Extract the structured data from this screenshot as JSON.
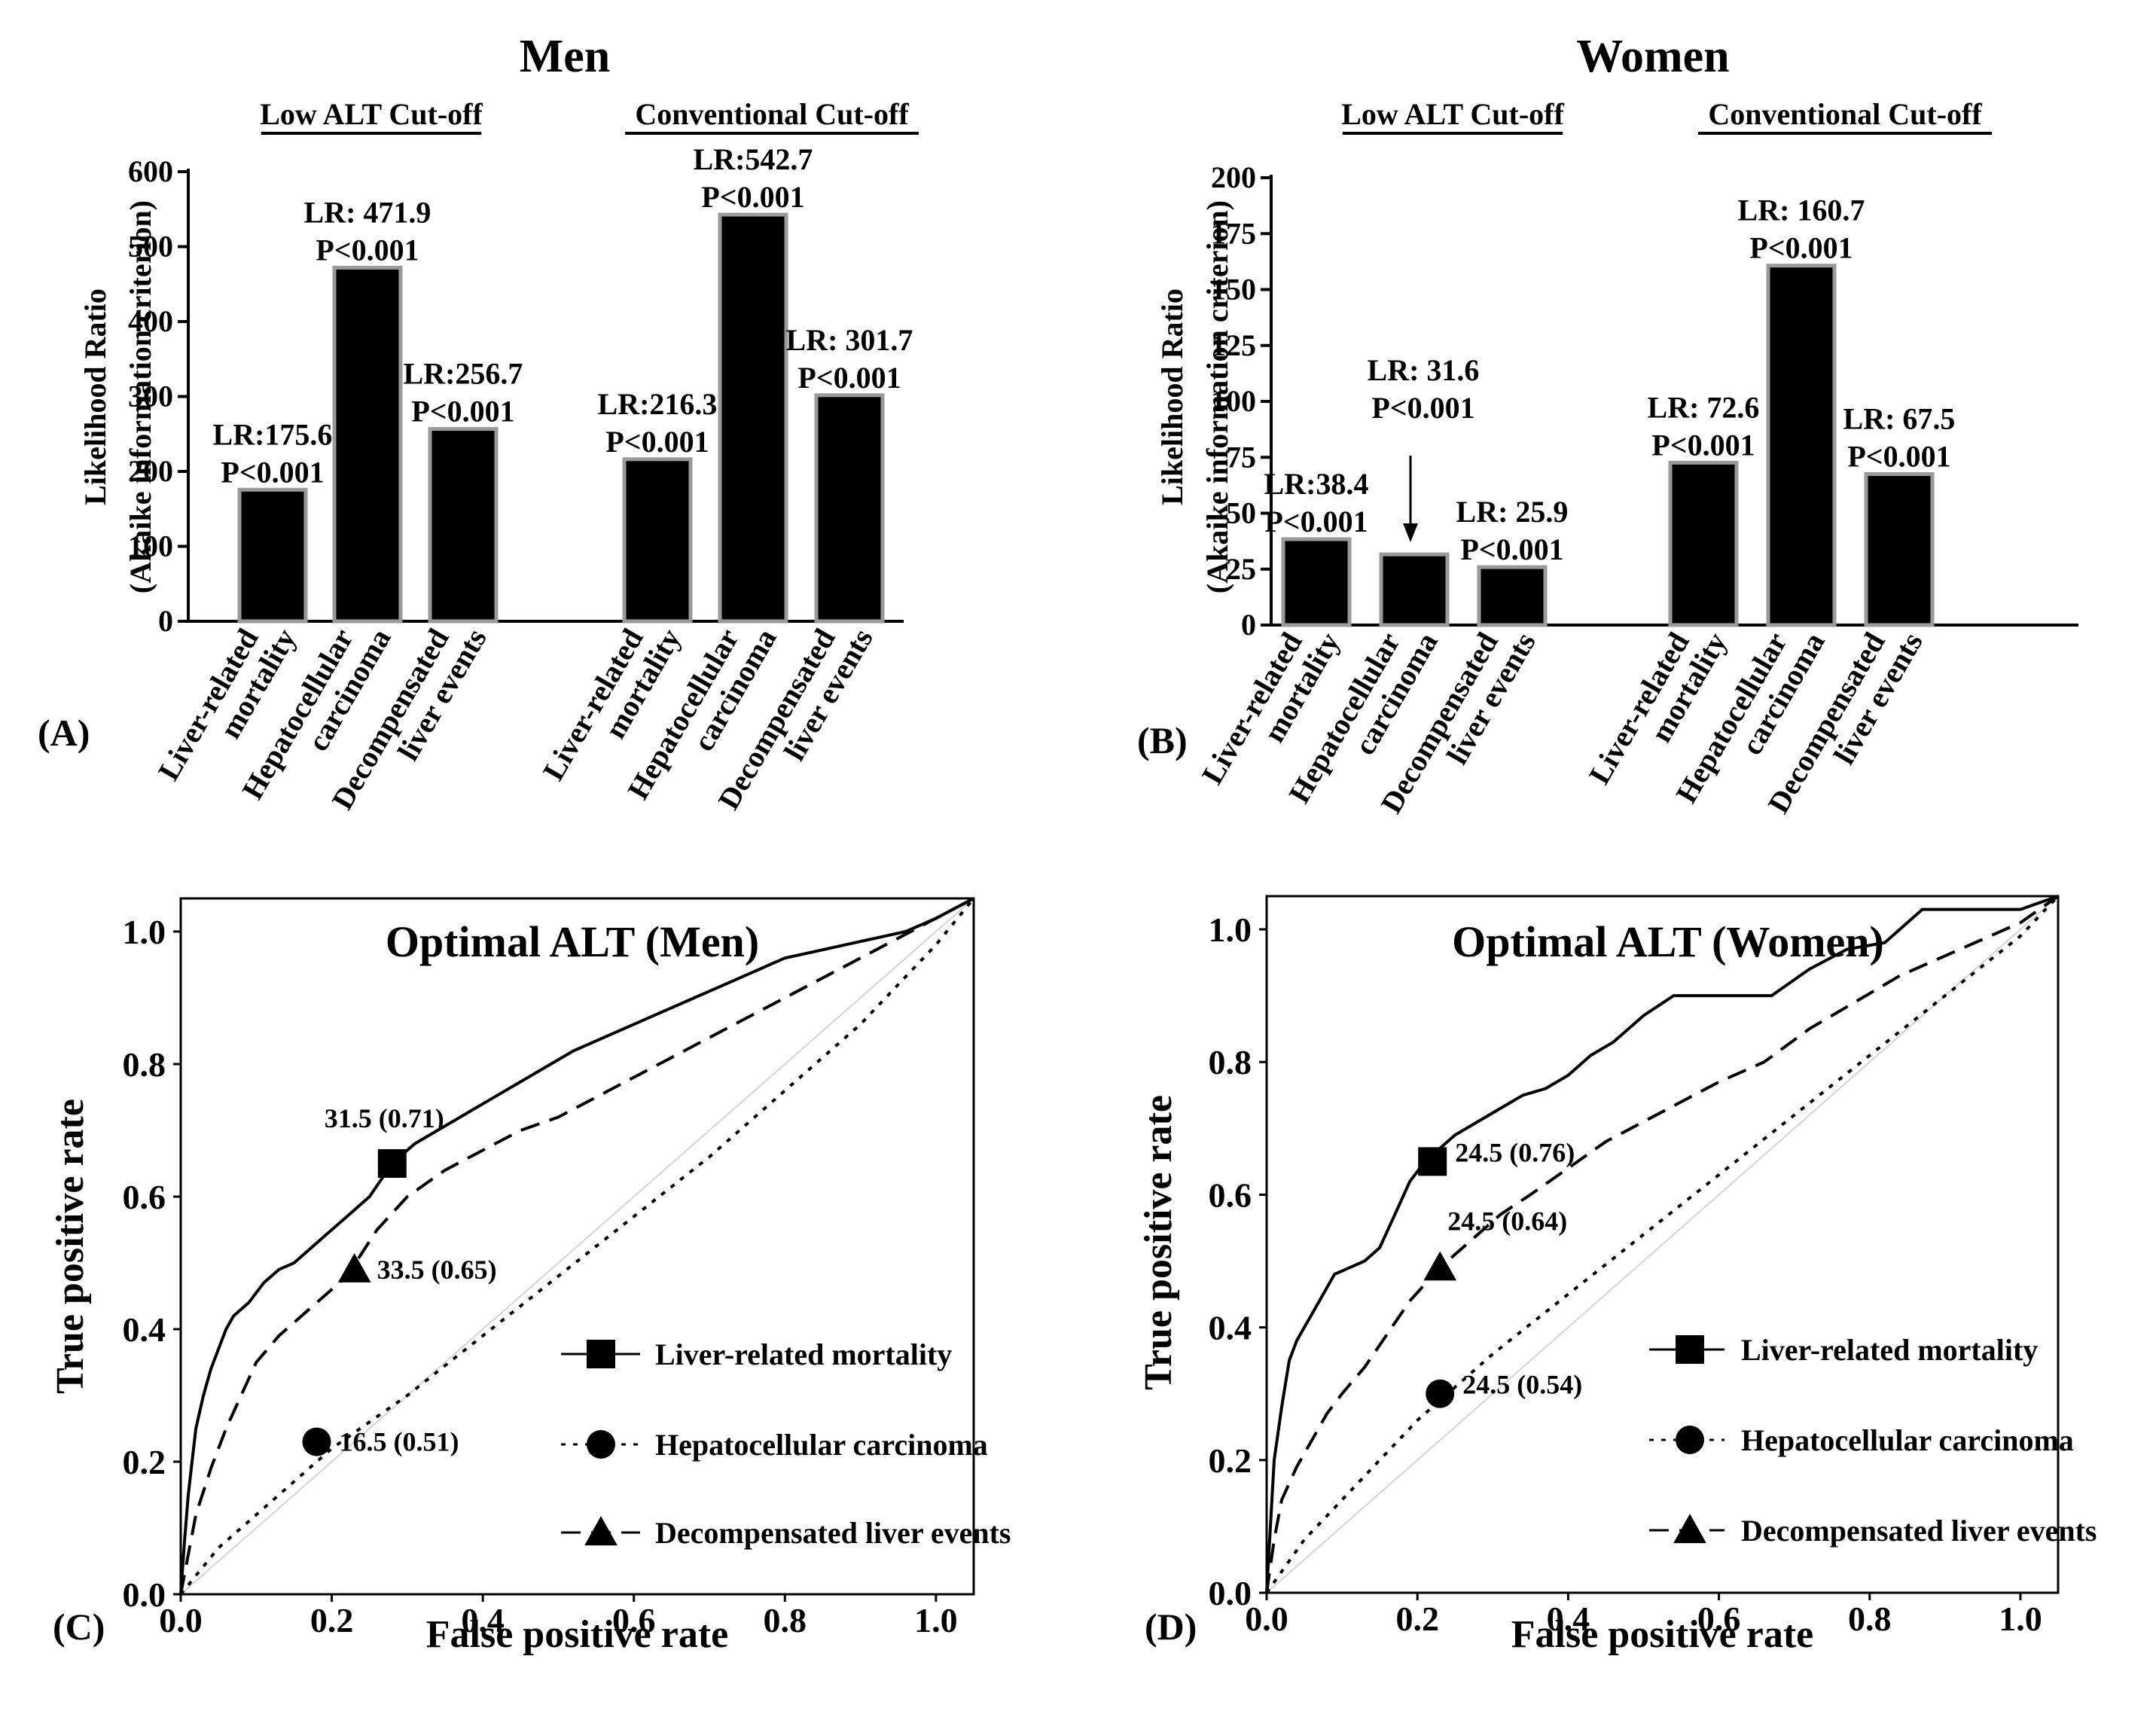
{
  "chart_data": [
    {
      "panel": "(A)",
      "type": "bar",
      "title": "Men",
      "ylabel": [
        "Likelihood Ratio",
        "(Akaike information  criterion)"
      ],
      "ylim": [
        0,
        600
      ],
      "yticks": [
        "0",
        "100",
        "200",
        "300",
        "400",
        "500",
        "600"
      ],
      "groups": [
        {
          "name": "Low ALT Cut-off",
          "bars": [
            {
              "category": [
                "Liver-related",
                "mortality"
              ],
              "value": 175.6,
              "label": [
                "LR:175.6",
                "P<0.001"
              ]
            },
            {
              "category": [
                "Hepatocellular",
                "carcinoma"
              ],
              "value": 471.9,
              "label": [
                "LR: 471.9",
                "P<0.001"
              ]
            },
            {
              "category": [
                "Decompensated",
                "liver events"
              ],
              "value": 256.7,
              "label": [
                "LR:256.7",
                "P<0.001"
              ]
            }
          ]
        },
        {
          "name": "Conventional Cut-off",
          "bars": [
            {
              "category": [
                "Liver-related",
                "mortality"
              ],
              "value": 216.3,
              "label": [
                "LR:216.3",
                "P<0.001"
              ]
            },
            {
              "category": [
                "Hepatocellular",
                "carcinoma"
              ],
              "value": 542.7,
              "label": [
                "LR:542.7",
                "P<0.001"
              ]
            },
            {
              "category": [
                "Decompensated",
                "liver events"
              ],
              "value": 301.7,
              "label": [
                "LR: 301.7",
                "P<0.001"
              ]
            }
          ]
        }
      ]
    },
    {
      "panel": "(B)",
      "type": "bar",
      "title": "Women",
      "ylabel": [
        "Likelihood Ratio",
        "(Akaike information  criterion)"
      ],
      "ylim": [
        0,
        200
      ],
      "yticks": [
        "0",
        "25",
        "50",
        "75",
        "100",
        "125",
        "150",
        "175",
        "200"
      ],
      "groups": [
        {
          "name": "Low ALT Cut-off",
          "bars": [
            {
              "category": [
                "Liver-related",
                "mortality"
              ],
              "value": 38.4,
              "label": [
                "LR:38.4",
                "P<0.001"
              ]
            },
            {
              "category": [
                "Hepatocellular",
                "carcinoma"
              ],
              "value": 31.6,
              "label": [
                "LR: 31.6",
                "P<0.001"
              ]
            },
            {
              "category": [
                "Decompensated",
                "liver events"
              ],
              "value": 25.9,
              "label": [
                "LR: 25.9",
                "P<0.001"
              ]
            }
          ]
        },
        {
          "name": "Conventional Cut-off",
          "bars": [
            {
              "category": [
                "Liver-related",
                "mortality"
              ],
              "value": 72.6,
              "label": [
                "LR: 72.6",
                "P<0.001"
              ]
            },
            {
              "category": [
                "Hepatocellular",
                "carcinoma"
              ],
              "value": 160.7,
              "label": [
                "LR: 160.7",
                "P<0.001"
              ]
            },
            {
              "category": [
                "Decompensated",
                "liver events"
              ],
              "value": 67.5,
              "label": [
                "LR: 67.5",
                "P<0.001"
              ]
            }
          ]
        }
      ]
    },
    {
      "panel": "(C)",
      "type": "line",
      "title": "Optimal ALT (Men)",
      "xlabel": "False positive rate",
      "ylabel": "True positive rate",
      "xlim": [
        0,
        1.05
      ],
      "ylim": [
        0,
        1.05
      ],
      "xticks": [
        "0.0",
        "0.2",
        "0.4",
        "0.6",
        "0.8",
        "1.0"
      ],
      "yticks": [
        "0.0",
        "0.2",
        "0.4",
        "0.6",
        "0.8",
        "1.0"
      ],
      "series": [
        {
          "name": "Liver-related mortality",
          "style": "solid",
          "marker": "square",
          "x": [
            0,
            0.005,
            0.01,
            0.015,
            0.02,
            0.03,
            0.04,
            0.05,
            0.06,
            0.07,
            0.09,
            0.11,
            0.13,
            0.15,
            0.17,
            0.19,
            0.21,
            0.23,
            0.25,
            0.28,
            0.31,
            0.34,
            0.37,
            0.4,
            0.43,
            0.46,
            0.49,
            0.52,
            0.56,
            0.6,
            0.64,
            0.68,
            0.72,
            0.76,
            0.8,
            0.84,
            0.88,
            0.92,
            0.96,
            1.0,
            1.05
          ],
          "y": [
            0,
            0.08,
            0.15,
            0.2,
            0.25,
            0.3,
            0.34,
            0.37,
            0.4,
            0.42,
            0.44,
            0.47,
            0.49,
            0.5,
            0.52,
            0.54,
            0.56,
            0.58,
            0.6,
            0.65,
            0.68,
            0.7,
            0.72,
            0.74,
            0.76,
            0.78,
            0.8,
            0.82,
            0.84,
            0.86,
            0.88,
            0.9,
            0.92,
            0.94,
            0.96,
            0.97,
            0.98,
            0.99,
            1.0,
            1.02,
            1.05
          ]
        },
        {
          "name": "Hepatocellular carcinoma",
          "style": "dotted",
          "marker": "circle",
          "x": [
            0,
            0.05,
            0.1,
            0.2,
            0.3,
            0.4,
            0.5,
            0.6,
            0.7,
            0.8,
            0.9,
            1.0,
            1.05
          ],
          "y": [
            0,
            0.07,
            0.12,
            0.22,
            0.3,
            0.39,
            0.48,
            0.57,
            0.66,
            0.76,
            0.86,
            0.98,
            1.05
          ]
        },
        {
          "name": "Decompensated liver events",
          "style": "dashed",
          "marker": "triangle",
          "x": [
            0,
            0.01,
            0.02,
            0.04,
            0.06,
            0.08,
            0.1,
            0.13,
            0.16,
            0.19,
            0.22,
            0.26,
            0.3,
            0.35,
            0.4,
            0.45,
            0.5,
            0.55,
            0.6,
            0.65,
            0.7,
            0.75,
            0.8,
            0.85,
            0.9,
            0.95,
            1.0,
            1.05
          ],
          "y": [
            0,
            0.06,
            0.12,
            0.19,
            0.25,
            0.3,
            0.35,
            0.39,
            0.42,
            0.45,
            0.48,
            0.55,
            0.6,
            0.64,
            0.67,
            0.7,
            0.72,
            0.75,
            0.78,
            0.81,
            0.84,
            0.87,
            0.9,
            0.93,
            0.96,
            0.99,
            1.02,
            1.05
          ]
        }
      ],
      "points": [
        {
          "marker": "square",
          "x": 0.28,
          "y": 0.65,
          "label": "31.5 (0.71)"
        },
        {
          "marker": "triangle",
          "x": 0.23,
          "y": 0.49,
          "label": "33.5 (0.65)"
        },
        {
          "marker": "circle",
          "x": 0.18,
          "y": 0.23,
          "label": "16.5 (0.51)"
        }
      ]
    },
    {
      "panel": "(D)",
      "type": "line",
      "title": "Optimal ALT (Women)",
      "xlabel": "False positive rate",
      "ylabel": "True positive rate",
      "xlim": [
        0,
        1.05
      ],
      "ylim": [
        0,
        1.05
      ],
      "xticks": [
        "0.0",
        "0.2",
        "0.4",
        "0.6",
        "0.8",
        "1.0"
      ],
      "yticks": [
        "0.0",
        "0.2",
        "0.4",
        "0.6",
        "0.8",
        "1.0"
      ],
      "series": [
        {
          "name": "Liver-related mortality",
          "style": "solid",
          "marker": "square",
          "x": [
            0,
            0.005,
            0.01,
            0.02,
            0.03,
            0.04,
            0.05,
            0.06,
            0.08,
            0.09,
            0.11,
            0.13,
            0.15,
            0.17,
            0.19,
            0.21,
            0.22,
            0.25,
            0.28,
            0.31,
            0.34,
            0.37,
            0.4,
            0.43,
            0.46,
            0.5,
            0.54,
            0.6,
            0.67,
            0.72,
            0.77,
            0.82,
            0.87,
            0.92,
            1.0,
            1.05
          ],
          "y": [
            0,
            0.1,
            0.2,
            0.28,
            0.35,
            0.38,
            0.4,
            0.42,
            0.46,
            0.48,
            0.49,
            0.5,
            0.52,
            0.57,
            0.62,
            0.65,
            0.66,
            0.69,
            0.71,
            0.73,
            0.75,
            0.76,
            0.78,
            0.81,
            0.83,
            0.87,
            0.9,
            0.9,
            0.9,
            0.94,
            0.97,
            0.98,
            1.03,
            1.03,
            1.03,
            1.05
          ]
        },
        {
          "name": "Hepatocellular carcinoma",
          "style": "dotted",
          "marker": "circle",
          "x": [
            0,
            0.05,
            0.1,
            0.2,
            0.3,
            0.4,
            0.5,
            0.6,
            0.7,
            0.8,
            0.9,
            1.0,
            1.05
          ],
          "y": [
            0,
            0.08,
            0.14,
            0.26,
            0.36,
            0.45,
            0.54,
            0.63,
            0.72,
            0.81,
            0.9,
            0.99,
            1.05
          ]
        },
        {
          "name": "Decompensated liver events",
          "style": "dashed",
          "marker": "triangle",
          "x": [
            0,
            0.01,
            0.02,
            0.04,
            0.06,
            0.08,
            0.1,
            0.13,
            0.16,
            0.19,
            0.23,
            0.27,
            0.31,
            0.35,
            0.4,
            0.45,
            0.5,
            0.55,
            0.6,
            0.66,
            0.72,
            0.78,
            0.84,
            0.9,
            0.96,
            1.0,
            1.05
          ],
          "y": [
            0,
            0.08,
            0.14,
            0.19,
            0.23,
            0.27,
            0.3,
            0.34,
            0.39,
            0.44,
            0.49,
            0.53,
            0.57,
            0.6,
            0.64,
            0.68,
            0.71,
            0.74,
            0.77,
            0.8,
            0.85,
            0.89,
            0.93,
            0.96,
            0.99,
            1.01,
            1.05
          ]
        }
      ],
      "points": [
        {
          "marker": "square",
          "x": 0.22,
          "y": 0.65,
          "label": "24.5 (0.76)"
        },
        {
          "marker": "triangle",
          "x": 0.23,
          "y": 0.49,
          "label": "24.5 (0.64)"
        },
        {
          "marker": "circle",
          "x": 0.23,
          "y": 0.3,
          "label": "24.5 (0.54)"
        }
      ]
    }
  ]
}
